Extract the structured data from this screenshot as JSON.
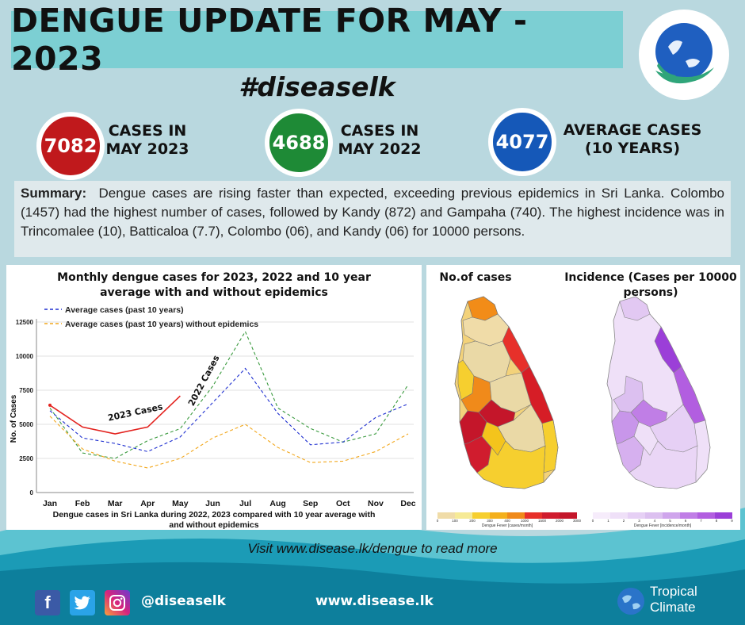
{
  "header": {
    "title": "DENGUE UPDATE FOR MAY - 2023",
    "hashtag": "#diseaselk"
  },
  "stats": [
    {
      "value": "7082",
      "label_line1": "CASES IN",
      "label_line2": "MAY 2023",
      "color": "#c0191c"
    },
    {
      "value": "4688",
      "label_line1": "CASES IN",
      "label_line2": "MAY 2022",
      "color": "#1e8a36"
    },
    {
      "value": "4077",
      "label_line1": "AVERAGE CASES",
      "label_line2": "(10 YEARS)",
      "color": "#1558b8"
    }
  ],
  "summary": {
    "label": "Summary:",
    "text": "Dengue cases are rising faster than expected, exceeding previous epidemics in Sri Lanka. Colombo (1457) had the highest number of cases, followed by Kandy (872) and Gampaha (740). The highest incidence was in Trincomalee (10), Batticaloa (7.7), Colombo (06), and Kandy (06) for 10000 persons."
  },
  "chart_data": {
    "type": "line",
    "title": "Monthly dengue cases for 2023, 2022 and 10 year average with and without epidemics",
    "caption": "Dengue cases in Sri Lanka during 2022, 2023 compared with 10 year average with and without epidemics",
    "ylabel": "No. of Cases",
    "xlabel": "",
    "categories": [
      "Jan",
      "Feb",
      "Mar",
      "Apr",
      "May",
      "Jun",
      "Jul",
      "Aug",
      "Sep",
      "Oct",
      "Nov",
      "Dec"
    ],
    "ylim": [
      0,
      12500
    ],
    "yticks": [
      0,
      2500,
      5000,
      7500,
      10000,
      12500
    ],
    "legend_position": "top-left",
    "series": [
      {
        "name": "2023 Cases",
        "color": "#e3231f",
        "dash": "solid",
        "values": [
          6400,
          4800,
          4300,
          4800,
          7082,
          null,
          null,
          null,
          null,
          null,
          null,
          null
        ]
      },
      {
        "name": "2022 Cases",
        "color": "#3a9a3e",
        "dash": "dashed",
        "values": [
          6200,
          2900,
          2500,
          3800,
          4688,
          7800,
          11800,
          6200,
          4700,
          3700,
          4300,
          7900
        ]
      },
      {
        "name": "Average cases (past 10 years)",
        "color": "#1e2fd0",
        "dash": "dashed",
        "values": [
          6000,
          4000,
          3600,
          3000,
          4077,
          6600,
          9100,
          5800,
          3500,
          3700,
          5500,
          6500
        ]
      },
      {
        "name": "Average cases (past 10 years) without epidemics",
        "color": "#f2a71b",
        "dash": "dashed",
        "values": [
          5600,
          3200,
          2300,
          1800,
          2500,
          4000,
          5000,
          3300,
          2200,
          2300,
          3000,
          4300
        ]
      }
    ]
  },
  "maps": {
    "cases_title": "No.of cases",
    "incidence_title": "Incidence (Cases per 10000 persons)",
    "cases_scale_label": "Dengue Fever [cases/month]",
    "incidence_scale_label": "Dengue Fever [incidence/month]",
    "cases_ticks": [
      "0",
      "100",
      "200",
      "300",
      "400",
      "1000",
      "1500",
      "2000",
      "3000"
    ],
    "incidence_ticks": [
      "0",
      "1",
      "2",
      "3",
      "4",
      "5",
      "6",
      "7",
      "8",
      "9"
    ]
  },
  "footer": {
    "visit_text": "Visit www.disease.lk/dengue to read more",
    "handle": "@diseaselk",
    "website": "www.disease.lk",
    "brand_line1": "Tropical",
    "brand_line2": "Climate"
  }
}
